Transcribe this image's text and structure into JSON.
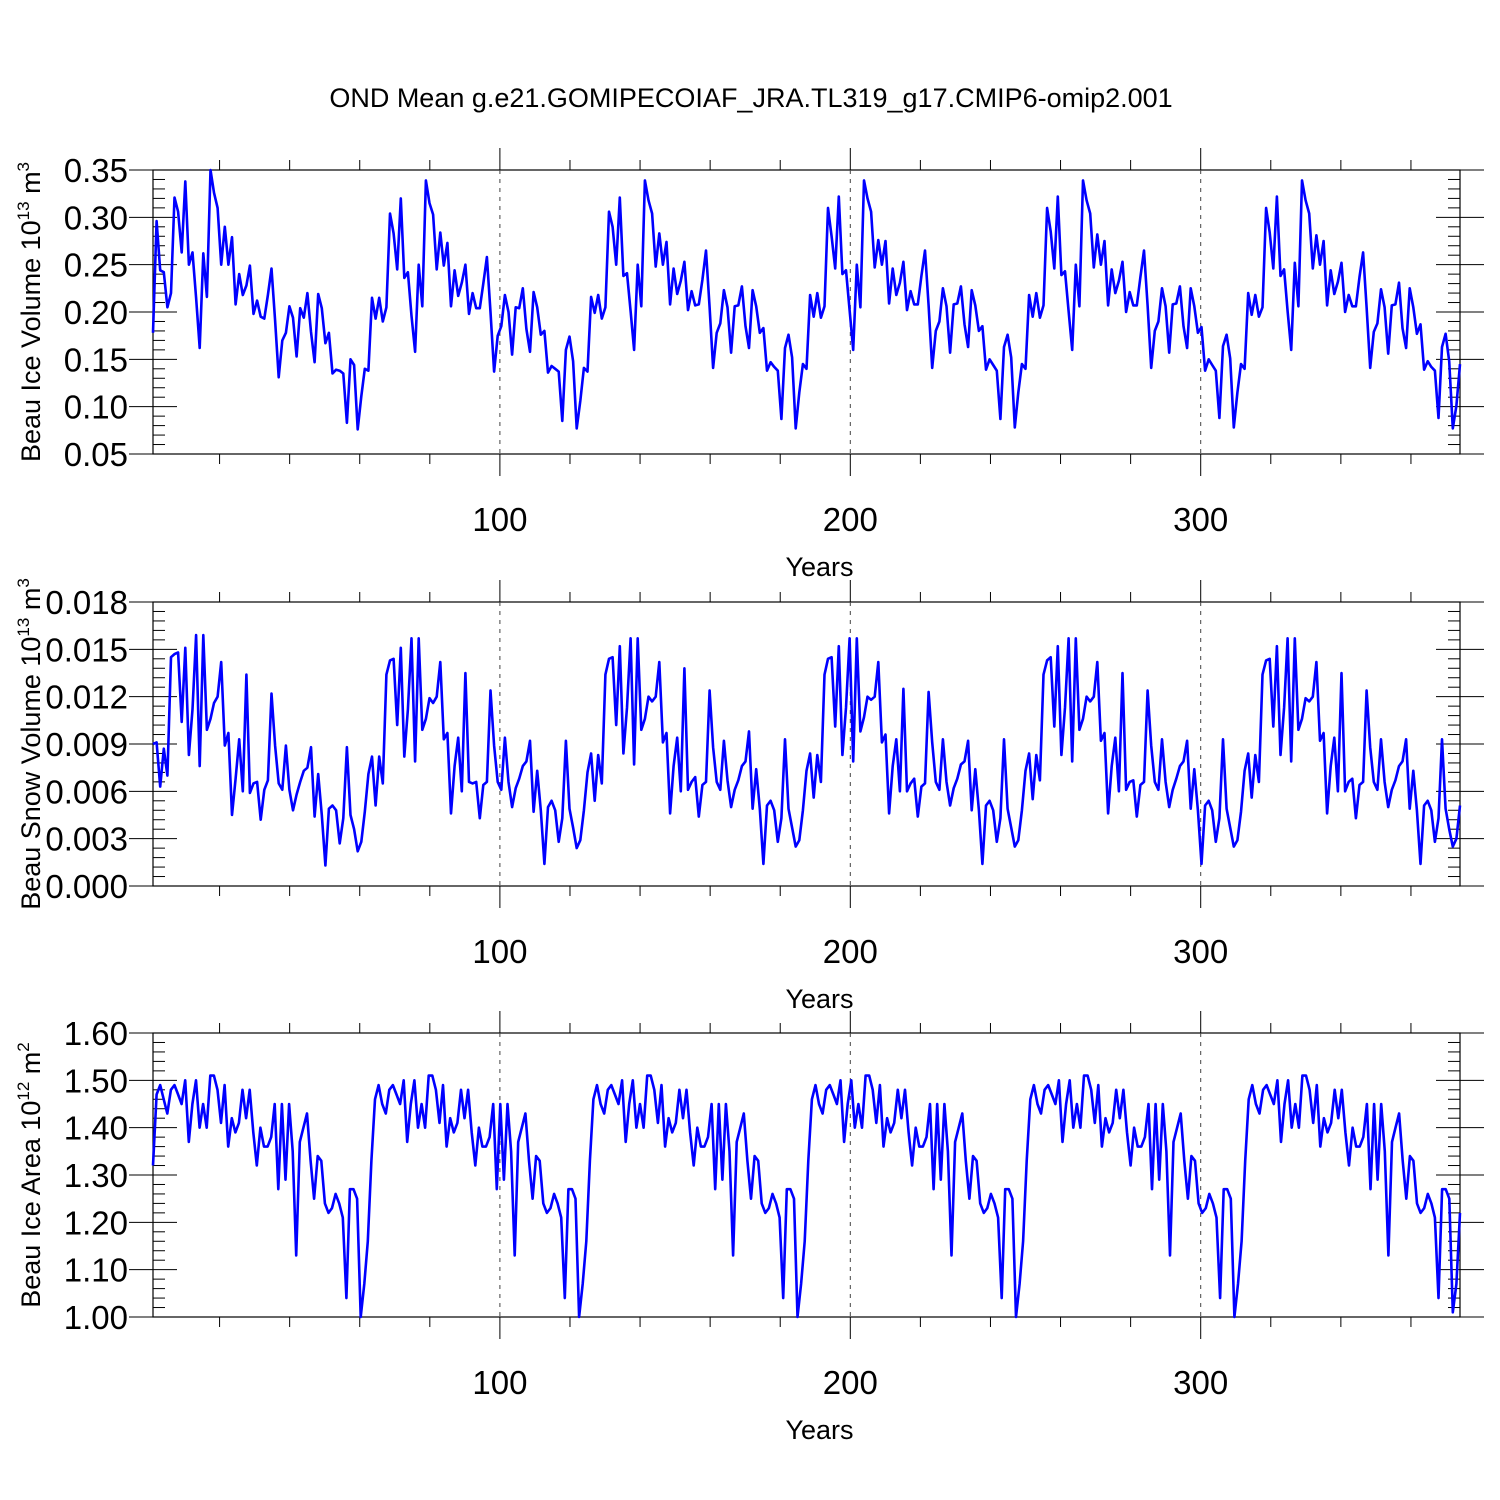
{
  "figure_title": "OND Mean g.e21.GOMIPECOIAF_JRA.TL319_g17.CMIP6-omip2.001",
  "line_color": "#0000ff",
  "chart_data": [
    {
      "type": "line",
      "name": "ice-volume",
      "ylabel_main": "Beau Ice Volume 10",
      "ylabel_exp": "13",
      "ylabel_unit": " m",
      "ylabel_unit_exp": "3",
      "xlabel": "Years",
      "xlim": [
        1,
        374
      ],
      "ylim": [
        0.05,
        0.35
      ],
      "xticks": [
        100,
        200,
        300
      ],
      "xtick_labels": [
        "100",
        "200",
        "300"
      ],
      "yticks": [
        0.05,
        0.1,
        0.15,
        0.2,
        0.25,
        0.3,
        0.35
      ],
      "ytick_labels": [
        "0.05",
        "0.10",
        "0.15",
        "0.20",
        "0.25",
        "0.30",
        "0.35"
      ],
      "y": [
        0.178,
        0.296,
        0.244,
        0.242,
        0.205,
        0.22,
        0.321,
        0.306,
        0.263,
        0.338,
        0.25,
        0.263,
        0.215,
        0.162,
        0.262,
        0.216,
        0.35,
        0.326,
        0.31,
        0.25,
        0.29,
        0.25,
        0.279,
        0.208,
        0.24,
        0.218,
        0.228,
        0.249,
        0.198,
        0.212,
        0.195,
        0.193,
        0.218,
        0.246,
        0.191,
        0.131,
        0.17,
        0.178,
        0.206,
        0.194,
        0.153,
        0.204,
        0.194,
        0.22,
        0.179,
        0.147,
        0.219,
        0.204,
        0.167,
        0.178,
        0.135,
        0.139,
        0.138,
        0.135,
        0.083,
        0.15,
        0.144,
        0.076,
        0.111,
        0.14,
        0.138,
        0.215,
        0.193,
        0.215,
        0.19,
        0.205,
        0.304,
        0.283,
        0.245,
        0.32,
        0.236,
        0.242,
        0.196,
        0.158,
        0.25,
        0.206,
        0.339,
        0.315,
        0.303,
        0.245,
        0.284,
        0.249,
        0.273,
        0.206,
        0.244,
        0.217,
        0.231,
        0.25,
        0.198,
        0.22,
        0.204,
        0.204,
        0.23,
        0.258,
        0.2,
        0.137,
        0.175,
        0.185,
        0.218,
        0.2,
        0.155,
        0.205,
        0.204,
        0.225,
        0.182,
        0.158,
        0.221,
        0.205,
        0.176,
        0.18,
        0.136,
        0.143,
        0.14,
        0.137,
        0.085,
        0.16,
        0.174,
        0.148,
        0.077,
        0.106,
        0.141,
        0.137,
        0.216,
        0.199,
        0.218,
        0.193,
        0.205,
        0.306,
        0.29,
        0.25,
        0.321,
        0.238,
        0.241,
        0.201,
        0.16,
        0.25,
        0.206,
        0.339,
        0.318,
        0.304,
        0.248,
        0.283,
        0.25,
        0.274,
        0.208,
        0.246,
        0.219,
        0.233,
        0.253,
        0.202,
        0.222,
        0.207,
        0.208,
        0.234,
        0.265,
        0.205,
        0.141,
        0.178,
        0.188,
        0.223,
        0.205,
        0.157,
        0.206,
        0.207,
        0.227,
        0.185,
        0.162,
        0.223,
        0.206,
        0.178,
        0.183,
        0.138,
        0.147,
        0.142,
        0.138,
        0.087,
        0.162,
        0.176,
        0.152,
        0.077,
        0.115,
        0.145,
        0.14,
        0.218,
        0.195,
        0.22,
        0.194,
        0.206,
        0.31,
        0.28,
        0.246,
        0.322,
        0.24,
        0.244,
        0.202,
        0.16,
        0.25,
        0.205,
        0.339,
        0.32,
        0.306,
        0.247,
        0.276,
        0.25,
        0.275,
        0.209,
        0.246,
        0.218,
        0.231,
        0.253,
        0.202,
        0.222,
        0.208,
        0.208,
        0.238,
        0.265,
        0.207,
        0.141,
        0.18,
        0.19,
        0.225,
        0.206,
        0.157,
        0.208,
        0.209,
        0.227,
        0.187,
        0.163,
        0.223,
        0.207,
        0.18,
        0.185,
        0.139,
        0.15,
        0.144,
        0.138,
        0.087,
        0.163,
        0.176,
        0.152,
        0.078,
        0.115,
        0.145,
        0.14,
        0.218,
        0.195,
        0.22,
        0.194,
        0.207,
        0.31,
        0.285,
        0.246,
        0.322,
        0.239,
        0.243,
        0.201,
        0.16,
        0.25,
        0.206,
        0.339,
        0.318,
        0.304,
        0.247,
        0.282,
        0.25,
        0.275,
        0.207,
        0.245,
        0.22,
        0.233,
        0.253,
        0.2,
        0.221,
        0.207,
        0.207,
        0.237,
        0.265,
        0.207,
        0.141,
        0.18,
        0.19,
        0.225,
        0.206,
        0.157,
        0.208,
        0.209,
        0.227,
        0.185,
        0.162,
        0.225,
        0.206,
        0.178,
        0.184,
        0.138,
        0.15,
        0.144,
        0.138,
        0.088,
        0.164,
        0.176,
        0.151,
        0.078,
        0.115,
        0.145,
        0.14,
        0.22,
        0.197,
        0.218,
        0.195,
        0.205,
        0.31,
        0.284,
        0.246,
        0.322,
        0.238,
        0.245,
        0.201,
        0.16,
        0.252,
        0.206,
        0.339,
        0.318,
        0.304,
        0.246,
        0.281,
        0.25,
        0.275,
        0.207,
        0.244,
        0.219,
        0.232,
        0.252,
        0.2,
        0.218,
        0.206,
        0.206,
        0.237,
        0.263,
        0.205,
        0.141,
        0.179,
        0.188,
        0.224,
        0.205,
        0.156,
        0.207,
        0.208,
        0.231,
        0.183,
        0.162,
        0.225,
        0.205,
        0.177,
        0.187,
        0.139,
        0.148,
        0.142,
        0.138,
        0.088,
        0.163,
        0.177,
        0.148,
        0.077,
        0.101,
        0.145
      ]
    },
    {
      "type": "line",
      "name": "snow-volume",
      "ylabel_main": "Beau Snow Volume 10",
      "ylabel_exp": "13",
      "ylabel_unit": " m",
      "ylabel_unit_exp": "3",
      "xlabel": "Years",
      "xlim": [
        1,
        374
      ],
      "ylim": [
        0.0,
        0.018
      ],
      "xticks": [
        100,
        200,
        300
      ],
      "xtick_labels": [
        "100",
        "200",
        "300"
      ],
      "yticks": [
        0.0,
        0.003,
        0.006,
        0.009,
        0.012,
        0.015,
        0.018
      ],
      "ytick_labels": [
        "0.000",
        "0.003",
        "0.006",
        "0.009",
        "0.012",
        "0.015",
        "0.018"
      ],
      "y": [
        0.009,
        0.0091,
        0.0063,
        0.0087,
        0.007,
        0.0145,
        0.0147,
        0.0148,
        0.0104,
        0.0151,
        0.0083,
        0.0112,
        0.0159,
        0.0076,
        0.0159,
        0.0099,
        0.0106,
        0.0116,
        0.012,
        0.0142,
        0.0089,
        0.0097,
        0.0045,
        0.0068,
        0.0093,
        0.006,
        0.0134,
        0.0059,
        0.0065,
        0.0066,
        0.0042,
        0.0061,
        0.0067,
        0.0122,
        0.0089,
        0.0065,
        0.0061,
        0.0089,
        0.0061,
        0.0048,
        0.0058,
        0.0066,
        0.0073,
        0.0075,
        0.0088,
        0.0044,
        0.0071,
        0.0045,
        0.0013,
        0.0049,
        0.0051,
        0.0048,
        0.0027,
        0.0043,
        0.0088,
        0.0045,
        0.0036,
        0.0022,
        0.0028,
        0.0047,
        0.0071,
        0.0082,
        0.0051,
        0.0082,
        0.0065,
        0.0134,
        0.0143,
        0.0144,
        0.0102,
        0.0151,
        0.0082,
        0.0112,
        0.0157,
        0.0079,
        0.0157,
        0.0099,
        0.0106,
        0.0119,
        0.0116,
        0.012,
        0.0142,
        0.0093,
        0.0097,
        0.0046,
        0.0076,
        0.0094,
        0.006,
        0.0135,
        0.0066,
        0.0065,
        0.0066,
        0.0043,
        0.0064,
        0.0066,
        0.0124,
        0.0089,
        0.0066,
        0.0061,
        0.0094,
        0.0066,
        0.005,
        0.0062,
        0.0068,
        0.0076,
        0.0079,
        0.0092,
        0.0047,
        0.0073,
        0.0048,
        0.0014,
        0.005,
        0.0054,
        0.0048,
        0.0028,
        0.0043,
        0.0092,
        0.0049,
        0.0037,
        0.0024,
        0.0029,
        0.0048,
        0.0072,
        0.0084,
        0.0054,
        0.0083,
        0.0065,
        0.0134,
        0.0144,
        0.0145,
        0.0102,
        0.0152,
        0.0084,
        0.0113,
        0.0157,
        0.0077,
        0.0157,
        0.0099,
        0.0106,
        0.012,
        0.0117,
        0.012,
        0.0142,
        0.0091,
        0.0097,
        0.0046,
        0.0076,
        0.0094,
        0.006,
        0.0138,
        0.0061,
        0.0066,
        0.0069,
        0.0044,
        0.0064,
        0.0066,
        0.0124,
        0.0088,
        0.0066,
        0.0061,
        0.0092,
        0.0067,
        0.005,
        0.0061,
        0.0067,
        0.0076,
        0.0079,
        0.0098,
        0.0049,
        0.0074,
        0.0049,
        0.0014,
        0.0051,
        0.0054,
        0.0048,
        0.0028,
        0.0043,
        0.0093,
        0.0049,
        0.0037,
        0.0025,
        0.0029,
        0.0048,
        0.0073,
        0.0084,
        0.0056,
        0.0083,
        0.0066,
        0.0134,
        0.0144,
        0.0145,
        0.0101,
        0.0152,
        0.0083,
        0.0113,
        0.0157,
        0.0079,
        0.0157,
        0.0098,
        0.0107,
        0.012,
        0.0118,
        0.012,
        0.0142,
        0.0091,
        0.0096,
        0.0046,
        0.0076,
        0.0093,
        0.006,
        0.0125,
        0.006,
        0.0065,
        0.0068,
        0.0044,
        0.0063,
        0.0065,
        0.0123,
        0.0091,
        0.0066,
        0.0061,
        0.0093,
        0.0066,
        0.0051,
        0.0062,
        0.0068,
        0.0077,
        0.0079,
        0.0092,
        0.0048,
        0.0074,
        0.0048,
        0.0014,
        0.0051,
        0.0054,
        0.0048,
        0.0028,
        0.0043,
        0.0093,
        0.0049,
        0.0037,
        0.0025,
        0.0029,
        0.0048,
        0.0073,
        0.0084,
        0.0055,
        0.0083,
        0.0067,
        0.0134,
        0.0143,
        0.0145,
        0.0101,
        0.0152,
        0.0083,
        0.0113,
        0.0157,
        0.0079,
        0.0157,
        0.0099,
        0.0106,
        0.012,
        0.0117,
        0.012,
        0.0142,
        0.0092,
        0.0097,
        0.0046,
        0.0076,
        0.0094,
        0.006,
        0.0135,
        0.0061,
        0.0066,
        0.0067,
        0.0044,
        0.0064,
        0.0066,
        0.0124,
        0.0089,
        0.0066,
        0.0061,
        0.0093,
        0.0066,
        0.005,
        0.0061,
        0.0068,
        0.0076,
        0.0079,
        0.0092,
        0.0049,
        0.0074,
        0.0048,
        0.0014,
        0.0051,
        0.0054,
        0.0048,
        0.0028,
        0.0043,
        0.0093,
        0.0049,
        0.0037,
        0.0025,
        0.0029,
        0.0047,
        0.0073,
        0.0084,
        0.0056,
        0.0083,
        0.0066,
        0.0134,
        0.0143,
        0.0144,
        0.0101,
        0.0152,
        0.0083,
        0.0113,
        0.0157,
        0.0079,
        0.0157,
        0.0099,
        0.0106,
        0.0119,
        0.0117,
        0.012,
        0.0142,
        0.0092,
        0.0097,
        0.0046,
        0.0076,
        0.0094,
        0.006,
        0.0135,
        0.006,
        0.0066,
        0.0068,
        0.0043,
        0.0064,
        0.0066,
        0.0124,
        0.0088,
        0.0066,
        0.0061,
        0.0093,
        0.0066,
        0.005,
        0.0061,
        0.0067,
        0.0076,
        0.0079,
        0.0093,
        0.0049,
        0.0073,
        0.0048,
        0.0014,
        0.0051,
        0.0054,
        0.0048,
        0.0028,
        0.0043,
        0.0093,
        0.0049,
        0.0036,
        0.0025,
        0.003,
        0.0051
      ]
    },
    {
      "type": "line",
      "name": "ice-area",
      "ylabel_main": "Beau Ice Area 10",
      "ylabel_exp": "12",
      "ylabel_unit": " m",
      "ylabel_unit_exp": "2",
      "xlabel": "Years",
      "xlim": [
        1,
        374
      ],
      "ylim": [
        1.0,
        1.6
      ],
      "xticks": [
        100,
        200,
        300
      ],
      "xtick_labels": [
        "100",
        "200",
        "300"
      ],
      "yticks": [
        1.0,
        1.1,
        1.2,
        1.3,
        1.4,
        1.5,
        1.6
      ],
      "ytick_labels": [
        "1.00",
        "1.10",
        "1.20",
        "1.30",
        "1.40",
        "1.50",
        "1.60"
      ],
      "y": [
        1.32,
        1.47,
        1.49,
        1.46,
        1.43,
        1.48,
        1.49,
        1.47,
        1.45,
        1.5,
        1.37,
        1.45,
        1.5,
        1.4,
        1.45,
        1.4,
        1.51,
        1.51,
        1.48,
        1.41,
        1.49,
        1.36,
        1.42,
        1.39,
        1.41,
        1.48,
        1.42,
        1.48,
        1.39,
        1.32,
        1.4,
        1.36,
        1.36,
        1.38,
        1.45,
        1.27,
        1.45,
        1.29,
        1.45,
        1.35,
        1.13,
        1.37,
        1.4,
        1.43,
        1.33,
        1.25,
        1.34,
        1.33,
        1.24,
        1.22,
        1.23,
        1.26,
        1.24,
        1.21,
        1.04,
        1.27,
        1.27,
        1.25,
        1.0,
        1.07,
        1.16,
        1.33,
        1.46,
        1.49,
        1.45,
        1.43,
        1.48,
        1.49,
        1.47,
        1.45,
        1.5,
        1.37,
        1.45,
        1.5,
        1.4,
        1.45,
        1.4,
        1.51,
        1.51,
        1.48,
        1.41,
        1.49,
        1.36,
        1.42,
        1.39,
        1.41,
        1.48,
        1.42,
        1.48,
        1.39,
        1.32,
        1.4,
        1.36,
        1.36,
        1.38,
        1.45,
        1.27,
        1.45,
        1.29,
        1.45,
        1.35,
        1.13,
        1.37,
        1.4,
        1.43,
        1.33,
        1.25,
        1.34,
        1.33,
        1.24,
        1.22,
        1.23,
        1.26,
        1.24,
        1.21,
        1.04,
        1.27,
        1.27,
        1.25,
        1.0,
        1.07,
        1.16,
        1.33,
        1.46,
        1.49,
        1.45,
        1.43,
        1.48,
        1.49,
        1.47,
        1.45,
        1.5,
        1.37,
        1.45,
        1.5,
        1.4,
        1.45,
        1.4,
        1.51,
        1.51,
        1.48,
        1.41,
        1.49,
        1.36,
        1.42,
        1.39,
        1.41,
        1.48,
        1.42,
        1.48,
        1.39,
        1.32,
        1.4,
        1.36,
        1.36,
        1.38,
        1.45,
        1.27,
        1.45,
        1.29,
        1.45,
        1.35,
        1.13,
        1.37,
        1.4,
        1.43,
        1.33,
        1.25,
        1.34,
        1.33,
        1.24,
        1.22,
        1.23,
        1.26,
        1.24,
        1.21,
        1.04,
        1.27,
        1.27,
        1.25,
        1.0,
        1.07,
        1.16,
        1.33,
        1.46,
        1.49,
        1.45,
        1.43,
        1.48,
        1.49,
        1.47,
        1.45,
        1.5,
        1.37,
        1.45,
        1.5,
        1.4,
        1.45,
        1.4,
        1.51,
        1.51,
        1.48,
        1.41,
        1.49,
        1.36,
        1.42,
        1.39,
        1.41,
        1.48,
        1.42,
        1.48,
        1.39,
        1.32,
        1.4,
        1.36,
        1.36,
        1.38,
        1.45,
        1.27,
        1.45,
        1.29,
        1.45,
        1.35,
        1.13,
        1.37,
        1.4,
        1.43,
        1.33,
        1.25,
        1.34,
        1.33,
        1.24,
        1.22,
        1.23,
        1.26,
        1.24,
        1.21,
        1.04,
        1.27,
        1.27,
        1.25,
        1.0,
        1.07,
        1.16,
        1.33,
        1.46,
        1.49,
        1.45,
        1.43,
        1.48,
        1.49,
        1.47,
        1.45,
        1.5,
        1.37,
        1.45,
        1.5,
        1.4,
        1.45,
        1.4,
        1.51,
        1.51,
        1.48,
        1.41,
        1.49,
        1.36,
        1.42,
        1.39,
        1.41,
        1.48,
        1.42,
        1.48,
        1.39,
        1.32,
        1.4,
        1.36,
        1.36,
        1.38,
        1.45,
        1.27,
        1.45,
        1.29,
        1.45,
        1.35,
        1.13,
        1.37,
        1.4,
        1.43,
        1.33,
        1.25,
        1.34,
        1.33,
        1.24,
        1.22,
        1.23,
        1.26,
        1.24,
        1.21,
        1.04,
        1.27,
        1.27,
        1.25,
        1.0,
        1.07,
        1.16,
        1.33,
        1.46,
        1.49,
        1.45,
        1.43,
        1.48,
        1.49,
        1.47,
        1.45,
        1.5,
        1.37,
        1.45,
        1.5,
        1.4,
        1.45,
        1.4,
        1.51,
        1.51,
        1.48,
        1.41,
        1.49,
        1.36,
        1.42,
        1.39,
        1.41,
        1.48,
        1.42,
        1.48,
        1.39,
        1.32,
        1.4,
        1.36,
        1.36,
        1.38,
        1.45,
        1.27,
        1.45,
        1.29,
        1.45,
        1.35,
        1.13,
        1.37,
        1.4,
        1.43,
        1.33,
        1.25,
        1.34,
        1.33,
        1.24,
        1.22,
        1.23,
        1.26,
        1.24,
        1.21,
        1.04,
        1.27,
        1.27,
        1.25,
        1.01,
        1.07,
        1.22
      ]
    }
  ]
}
